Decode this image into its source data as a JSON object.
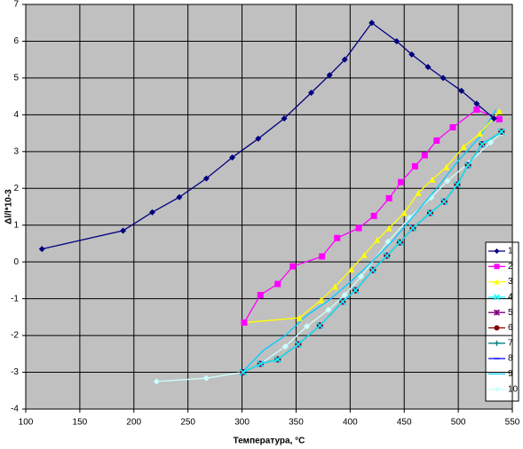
{
  "chart_data": {
    "type": "line",
    "x_label": "Температура, °C",
    "y_label": "Δl/l*10-3",
    "xlim": [
      100,
      550
    ],
    "xticks": [
      100,
      150,
      200,
      250,
      300,
      350,
      400,
      450,
      500,
      550
    ],
    "ylim": [
      -4,
      7
    ],
    "yticks": [
      -4,
      -3,
      -2,
      -1,
      0,
      1,
      2,
      3,
      4,
      5,
      6,
      7
    ],
    "grid": true,
    "legend": "right",
    "series": [
      {
        "name": "1",
        "color": "#000080",
        "marker": "diamond",
        "x": [
          115,
          190,
          217,
          242,
          267,
          291,
          315,
          339,
          364,
          381,
          395,
          420,
          443,
          457,
          472,
          486,
          503,
          517,
          533
        ],
        "values": [
          0.35,
          0.85,
          1.35,
          1.76,
          2.27,
          2.84,
          3.35,
          3.9,
          4.6,
          5.08,
          5.5,
          6.5,
          6.0,
          5.64,
          5.3,
          5.0,
          4.65,
          4.3,
          3.9
        ]
      },
      {
        "name": "2",
        "color": "#ff00ff",
        "marker": "square",
        "x": [
          302,
          317,
          333,
          347,
          374,
          388,
          408,
          422,
          436,
          447,
          460,
          469,
          480,
          495,
          517,
          538
        ],
        "values": [
          -1.65,
          -0.9,
          -0.6,
          -0.12,
          0.15,
          0.65,
          0.92,
          1.25,
          1.73,
          2.17,
          2.6,
          2.9,
          3.3,
          3.66,
          4.14,
          3.88
        ]
      },
      {
        "name": "3",
        "color": "#ffff00",
        "marker": "triangle",
        "x": [
          302,
          353,
          373,
          386,
          401,
          413,
          425,
          436,
          450,
          463,
          476,
          489,
          505,
          520,
          538
        ],
        "values": [
          -1.65,
          -1.52,
          -1.04,
          -0.67,
          -0.2,
          0.19,
          0.6,
          0.92,
          1.33,
          1.88,
          2.24,
          2.58,
          3.13,
          3.49,
          4.1
        ]
      },
      {
        "name": "4",
        "color": "#00ffff",
        "marker": "x",
        "x": [
          301,
          317,
          333,
          352,
          372,
          393,
          405,
          421,
          434,
          446,
          458,
          474,
          487,
          499,
          509,
          522,
          540
        ],
        "values": [
          -3.0,
          -2.77,
          -2.65,
          -2.24,
          -1.73,
          -1.08,
          -0.77,
          -0.22,
          0.17,
          0.53,
          0.92,
          1.33,
          1.64,
          2.1,
          2.63,
          3.2,
          3.54
        ]
      },
      {
        "name": "5",
        "color": "#800080",
        "marker": "star",
        "x": [
          301,
          317,
          333,
          352,
          372,
          393,
          405,
          421,
          434,
          446,
          458,
          474,
          487,
          499,
          509,
          522,
          540
        ],
        "values": [
          -3.0,
          -2.77,
          -2.65,
          -2.24,
          -1.73,
          -1.08,
          -0.77,
          -0.22,
          0.17,
          0.53,
          0.92,
          1.33,
          1.64,
          2.1,
          2.63,
          3.2,
          3.54
        ]
      },
      {
        "name": "6",
        "color": "#800000",
        "marker": "circle",
        "x": [
          301,
          317,
          333,
          352,
          372,
          393,
          405,
          421,
          434,
          446,
          458,
          474,
          487,
          499,
          509,
          522,
          540
        ],
        "values": [
          -3.0,
          -2.77,
          -2.65,
          -2.24,
          -1.73,
          -1.08,
          -0.77,
          -0.22,
          0.17,
          0.53,
          0.92,
          1.33,
          1.64,
          2.1,
          2.63,
          3.2,
          3.54
        ]
      },
      {
        "name": "7",
        "color": "#008080",
        "marker": "plus",
        "x": [
          301,
          317,
          333,
          352,
          372,
          393,
          405,
          421,
          434,
          446,
          458,
          474,
          487,
          499,
          509,
          522,
          540
        ],
        "values": [
          -3.0,
          -2.77,
          -2.65,
          -2.24,
          -1.73,
          -1.08,
          -0.77,
          -0.22,
          0.17,
          0.53,
          0.92,
          1.33,
          1.64,
          2.1,
          2.63,
          3.2,
          3.54
        ]
      },
      {
        "name": "8",
        "color": "#0000ff",
        "marker": "dash",
        "x": [
          301,
          317,
          333,
          352,
          372,
          393,
          405,
          421,
          434,
          446,
          458,
          474,
          487,
          499,
          509,
          522,
          540
        ],
        "values": [
          -3.0,
          -2.77,
          -2.65,
          -2.24,
          -1.73,
          -1.08,
          -0.77,
          -0.22,
          0.17,
          0.53,
          0.92,
          1.33,
          1.64,
          2.1,
          2.63,
          3.2,
          3.54
        ]
      },
      {
        "name": "9",
        "color": "#00ccff",
        "marker": "none",
        "x": [
          300,
          320,
          340,
          360,
          380,
          400,
          420,
          440,
          460,
          480,
          500,
          520,
          535
        ],
        "values": [
          -3.0,
          -2.4,
          -2.0,
          -1.45,
          -1.05,
          -0.55,
          0.0,
          0.6,
          1.3,
          2.0,
          2.75,
          3.4,
          4.15
        ]
      },
      {
        "name": "10",
        "color": "#ccffff",
        "marker": "diamond",
        "x": [
          221,
          267,
          301,
          318,
          340,
          360,
          380,
          395,
          410,
          435,
          455,
          475,
          490,
          510,
          530,
          540
        ],
        "values": [
          -3.25,
          -3.16,
          -3.0,
          -2.75,
          -2.3,
          -1.75,
          -1.3,
          -0.9,
          -0.4,
          0.55,
          1.2,
          1.75,
          2.2,
          2.7,
          3.25,
          3.5
        ]
      }
    ]
  }
}
